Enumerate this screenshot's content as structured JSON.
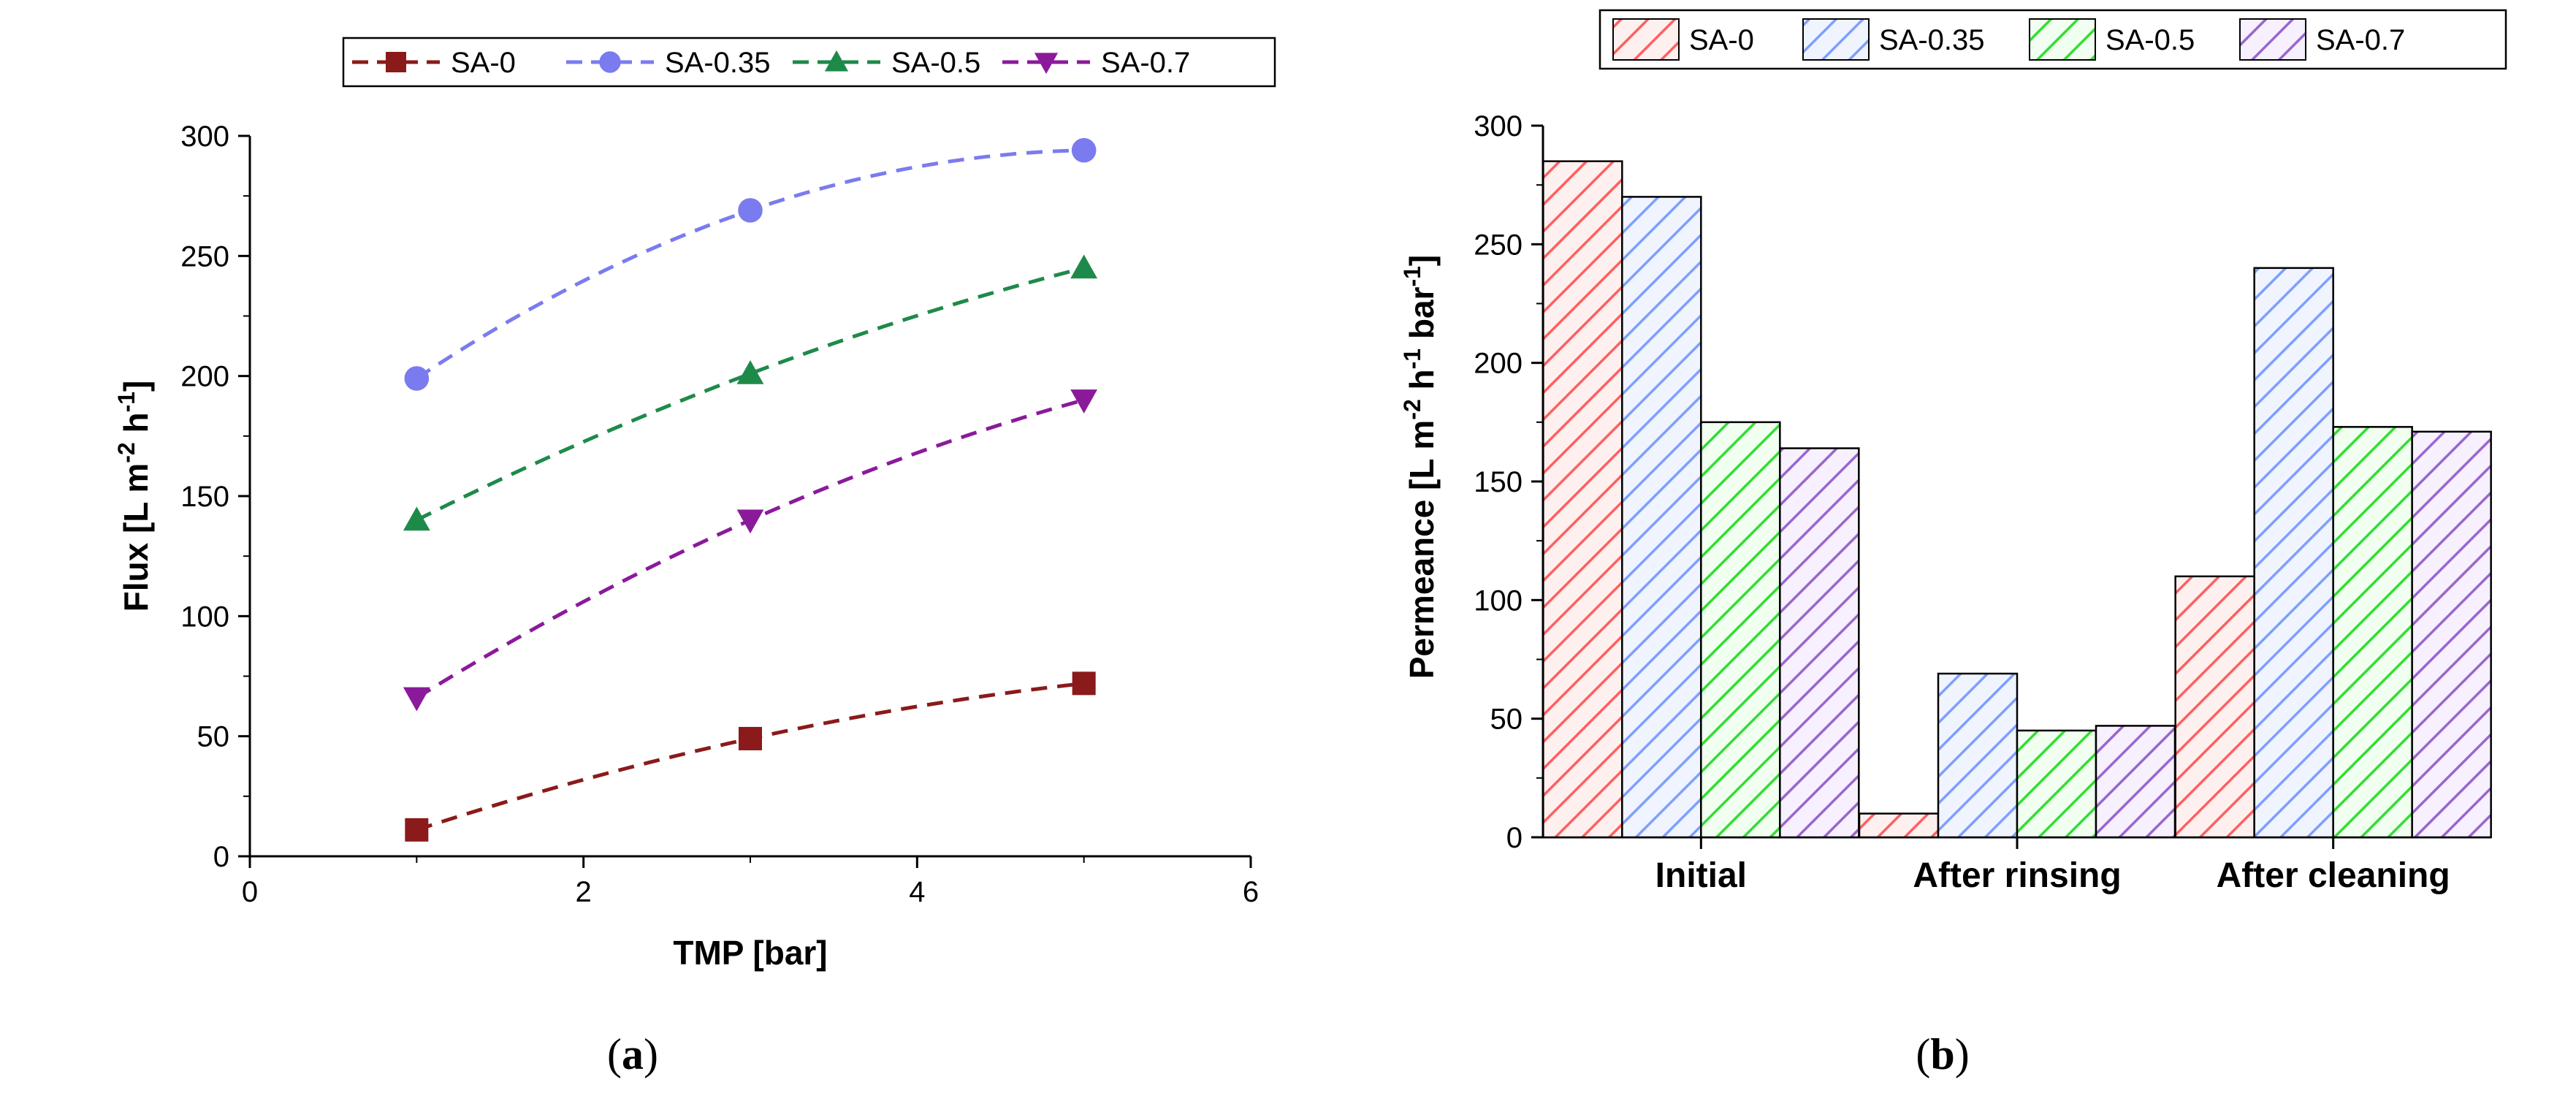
{
  "chart_data": [
    {
      "type": "line",
      "panel_label": "a",
      "xlabel": "TMP [bar]",
      "ylabel": {
        "base": "Flux [L m",
        "sup1": "-2",
        "mid": " h",
        "sup2": "-1",
        "end": "]"
      },
      "xlim": [
        0,
        6
      ],
      "ylim": [
        0,
        300
      ],
      "xticks": [
        "0",
        "2",
        "4",
        "6"
      ],
      "yticks": [
        "0",
        "50",
        "100",
        "150",
        "200",
        "250",
        "300"
      ],
      "x": [
        1,
        3,
        5
      ],
      "series": [
        {
          "name": "SA-0",
          "values": [
            11,
            49,
            72
          ],
          "color": "#8b1a1a",
          "marker": "square"
        },
        {
          "name": "SA-0.35",
          "values": [
            199,
            269,
            294
          ],
          "color": "#7b7bf0",
          "marker": "circle"
        },
        {
          "name": "SA-0.5",
          "values": [
            140,
            201,
            245
          ],
          "color": "#1e8a4a",
          "marker": "triangle-up"
        },
        {
          "name": "SA-0.7",
          "values": [
            66,
            140,
            190
          ],
          "color": "#8b1a9b",
          "marker": "triangle-down"
        }
      ]
    },
    {
      "type": "bar",
      "panel_label": "b",
      "ylabel": {
        "base": "Permeance [L m",
        "sup1": "-2",
        "mid": " h",
        "sup2": "-1",
        "mid2": " bar",
        "sup3": "-1",
        "end": "]"
      },
      "ylim": [
        0,
        300
      ],
      "yticks": [
        "0",
        "50",
        "100",
        "150",
        "200",
        "250",
        "300"
      ],
      "categories": [
        "Initial",
        "After rinsing",
        "After cleaning"
      ],
      "series": [
        {
          "name": "SA-0",
          "values": [
            285,
            10,
            110
          ],
          "color": "#ff6060",
          "fill": "#fff0f0"
        },
        {
          "name": "SA-0.35",
          "values": [
            270,
            69,
            240
          ],
          "color": "#7f9fff",
          "fill": "#f0f4ff"
        },
        {
          "name": "SA-0.5",
          "values": [
            175,
            45,
            173
          ],
          "color": "#33dd33",
          "fill": "#f0fff0"
        },
        {
          "name": "SA-0.7",
          "values": [
            164,
            47,
            171
          ],
          "color": "#9a66cc",
          "fill": "#f6f0ff"
        }
      ]
    }
  ]
}
